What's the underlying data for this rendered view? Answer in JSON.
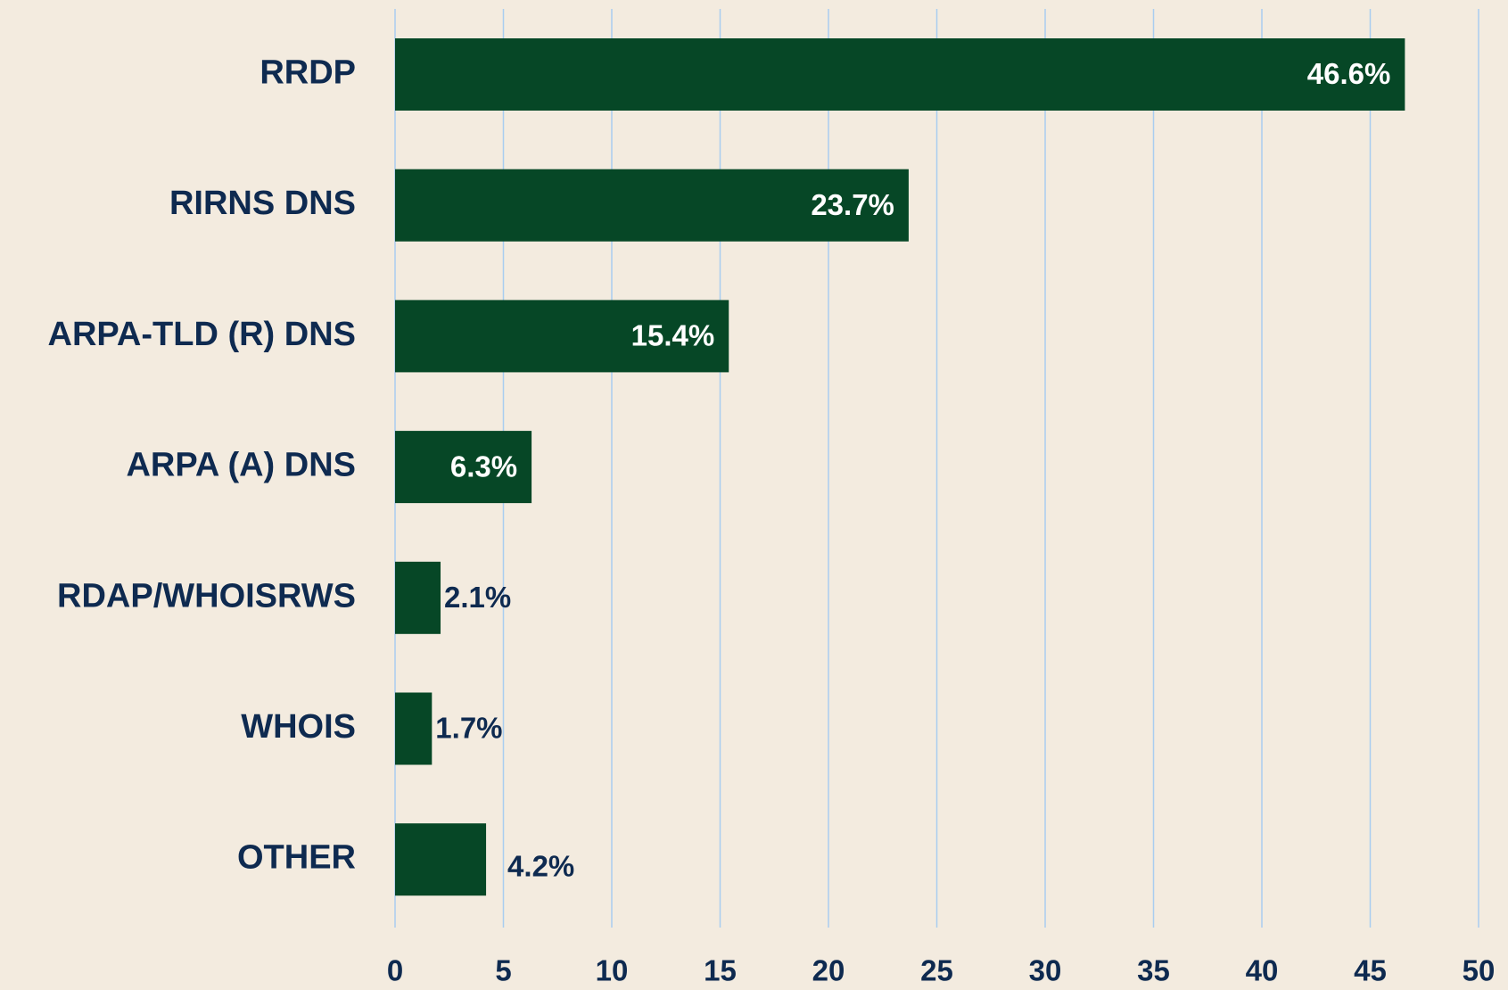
{
  "chart_data": {
    "type": "bar",
    "orientation": "horizontal",
    "categories": [
      "RRDP",
      "RIRNS DNS",
      "ARPA-TLD (R) DNS",
      "ARPA (A) DNS",
      "RDAP/WHOISRWS",
      "WHOIS",
      "OTHER"
    ],
    "values": [
      46.6,
      23.7,
      15.4,
      6.3,
      2.1,
      1.7,
      4.2
    ],
    "value_labels": [
      "46.6%",
      "23.7%",
      "15.4%",
      "6.3%",
      "2.1%",
      "1.7%",
      "4.2%"
    ],
    "color": "#064726",
    "xlim": [
      0,
      50
    ],
    "xticks": [
      0,
      5,
      10,
      15,
      20,
      25,
      30,
      35,
      40,
      45,
      50
    ],
    "grid": true
  }
}
